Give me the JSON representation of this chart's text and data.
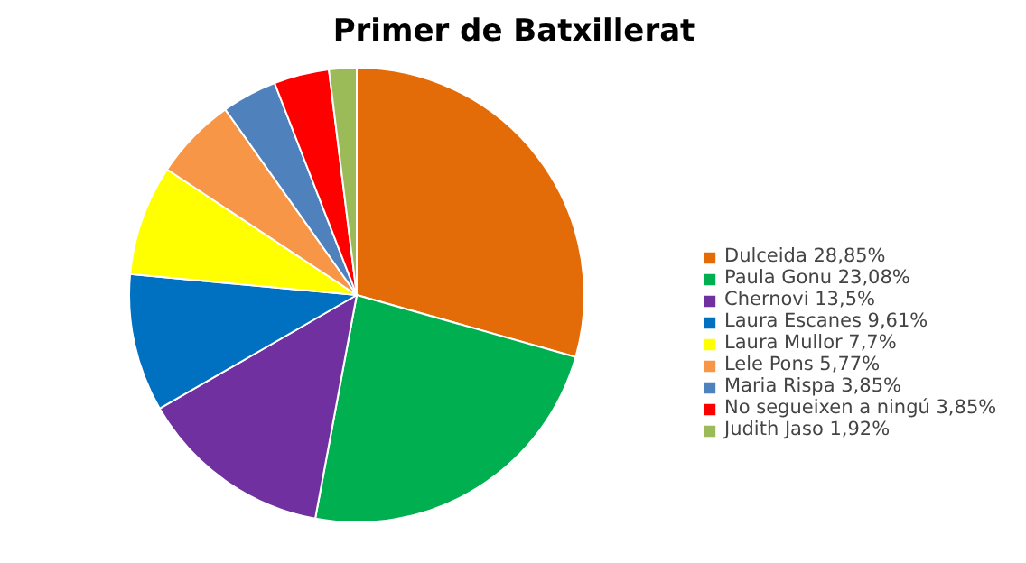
{
  "chart_data": {
    "type": "pie",
    "title": "Primer de Batxillerat",
    "categories": [
      "Dulceida 28,85%",
      "Paula Gonu 23,08%",
      "Chernovi 13,5%",
      "Laura Escanes 9,61%",
      "Laura Mullor 7,7%",
      "Lele Pons 5,77%",
      "Maria Rispa 3,85%",
      "No segueixen a ningú 3,85%",
      "Judith Jaso 1,92%"
    ],
    "values": [
      28.85,
      23.08,
      13.5,
      9.61,
      7.7,
      5.77,
      3.85,
      3.85,
      1.92
    ],
    "colors": [
      "#e36c09",
      "#00b050",
      "#7030a0",
      "#0070c0",
      "#ffff00",
      "#f79646",
      "#4f81bd",
      "#ff0000",
      "#9bbb59"
    ],
    "legend": "right"
  }
}
